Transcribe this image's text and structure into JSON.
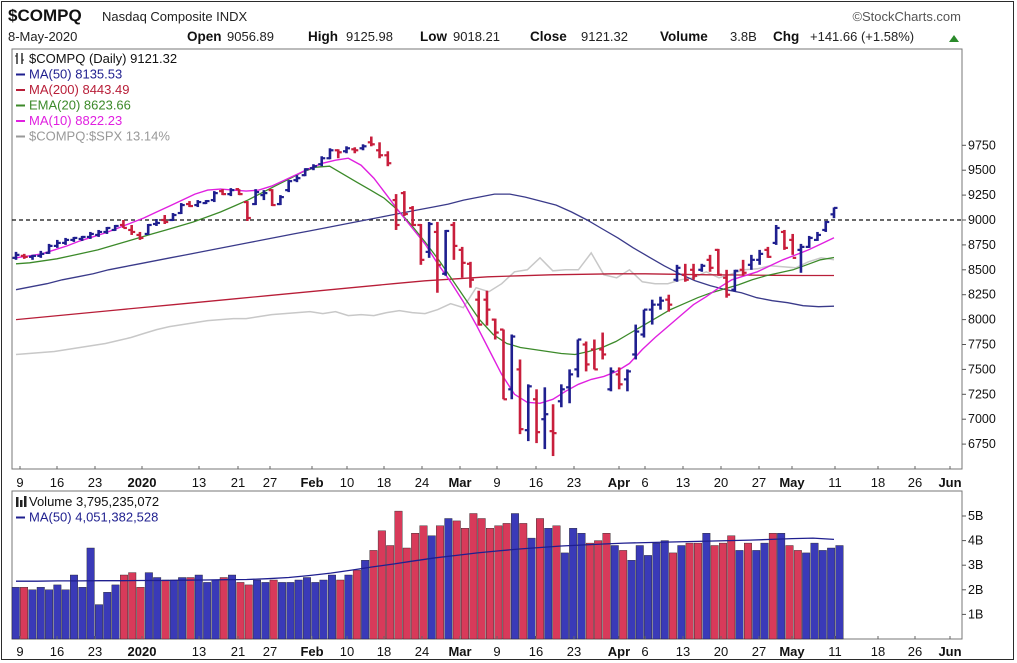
{
  "header": {
    "symbol": "$COMPQ",
    "name": "Nasdaq Composite INDX",
    "brand": "©StockCharts.com",
    "date": "8-May-2020",
    "open_label": "Open",
    "open": "9056.89",
    "high_label": "High",
    "high": "9125.98",
    "low_label": "Low",
    "low": "9018.21",
    "close_label": "Close",
    "close": "9121.32",
    "volume_label": "Volume",
    "volume": "3.8B",
    "chg_label": "Chg",
    "chg": "+141.66 (+1.58%)"
  },
  "colors": {
    "up": "#1f1f8f",
    "down": "#c81e3c",
    "ma50": "#3a3a8a",
    "ma200": "#b81e38",
    "ema20": "#3c8a2a",
    "ma10": "#e020e0",
    "relative": "#c8c8c8",
    "vol_up": "#3a3ab8",
    "vol_down": "#d83a5a"
  },
  "legend_price": [
    {
      "text": "$COMPQ (Daily) 9121.32",
      "color": "#111111",
      "icon": "ohlc-icon"
    },
    {
      "text": "MA(50) 8135.53",
      "color": "#1f1f8f",
      "icon": "line"
    },
    {
      "text": "MA(200) 8443.49",
      "color": "#b81e38",
      "icon": "line"
    },
    {
      "text": "EMA(20) 8623.66",
      "color": "#3c8a2a",
      "icon": "line"
    },
    {
      "text": "MA(10) 8822.23",
      "color": "#e020e0",
      "icon": "line"
    },
    {
      "text": "$COMPQ:$SPX 13.14%",
      "color": "#999999",
      "icon": "line"
    }
  ],
  "legend_volume": [
    {
      "text": "Volume 3,795,235,072",
      "color": "#111111",
      "icon": "bar-icon"
    },
    {
      "text": "MA(50) 4,051,382,528",
      "color": "#1f1f8f",
      "icon": "line"
    }
  ],
  "chart_data": {
    "type": "ohlc",
    "y_axis_price": {
      "ticks": [
        6750,
        7000,
        7250,
        7500,
        7750,
        8000,
        8250,
        8500,
        8750,
        9000,
        9250,
        9500,
        9750
      ],
      "reference_line": 9000
    },
    "y_axis_volume": {
      "ticks": [
        "1B",
        "2B",
        "3B",
        "4B",
        "5B"
      ],
      "tick_values": [
        1,
        2,
        3,
        4,
        5
      ],
      "unit": "billions"
    },
    "x_axis": {
      "labels": [
        "9",
        "16",
        "23",
        "2020",
        "13",
        "21",
        "27",
        "Feb",
        "10",
        "18",
        "24",
        "Mar",
        "9",
        "16",
        "23",
        "Apr",
        "6",
        "13",
        "20",
        "27",
        "May",
        "11",
        "18",
        "26",
        "Jun"
      ],
      "bold": [
        false,
        false,
        false,
        true,
        false,
        false,
        false,
        true,
        false,
        false,
        false,
        true,
        false,
        false,
        false,
        true,
        false,
        false,
        false,
        false,
        true,
        false,
        false,
        false,
        true
      ]
    },
    "bars": [
      {
        "o": 8620,
        "h": 8680,
        "l": 8600,
        "c": 8650
      },
      {
        "o": 8640,
        "h": 8660,
        "l": 8610,
        "c": 8630
      },
      {
        "o": 8630,
        "h": 8650,
        "l": 8600,
        "c": 8640
      },
      {
        "o": 8640,
        "h": 8690,
        "l": 8620,
        "c": 8660
      },
      {
        "o": 8670,
        "h": 8760,
        "l": 8660,
        "c": 8740
      },
      {
        "o": 8740,
        "h": 8800,
        "l": 8720,
        "c": 8770
      },
      {
        "o": 8770,
        "h": 8820,
        "l": 8750,
        "c": 8800
      },
      {
        "o": 8800,
        "h": 8830,
        "l": 8780,
        "c": 8820
      },
      {
        "o": 8810,
        "h": 8840,
        "l": 8790,
        "c": 8830
      },
      {
        "o": 8830,
        "h": 8880,
        "l": 8810,
        "c": 8860
      },
      {
        "o": 8850,
        "h": 8900,
        "l": 8830,
        "c": 8880
      },
      {
        "o": 8880,
        "h": 8930,
        "l": 8860,
        "c": 8920
      },
      {
        "o": 8900,
        "h": 8950,
        "l": 8890,
        "c": 8940
      },
      {
        "o": 8950,
        "h": 9000,
        "l": 8920,
        "c": 8920
      },
      {
        "o": 8900,
        "h": 8950,
        "l": 8850,
        "c": 8880
      },
      {
        "o": 8850,
        "h": 8880,
        "l": 8800,
        "c": 8820
      },
      {
        "o": 8860,
        "h": 8960,
        "l": 8850,
        "c": 8950
      },
      {
        "o": 8960,
        "h": 9010,
        "l": 8940,
        "c": 8970
      },
      {
        "o": 9000,
        "h": 9050,
        "l": 8960,
        "c": 8980
      },
      {
        "o": 9000,
        "h": 9070,
        "l": 8990,
        "c": 9050
      },
      {
        "o": 9070,
        "h": 9170,
        "l": 9060,
        "c": 9150
      },
      {
        "o": 9160,
        "h": 9190,
        "l": 9130,
        "c": 9140
      },
      {
        "o": 9150,
        "h": 9200,
        "l": 9130,
        "c": 9180
      },
      {
        "o": 9170,
        "h": 9200,
        "l": 9160,
        "c": 9190
      },
      {
        "o": 9200,
        "h": 9290,
        "l": 9180,
        "c": 9270
      },
      {
        "o": 9290,
        "h": 9310,
        "l": 9250,
        "c": 9260
      },
      {
        "o": 9260,
        "h": 9320,
        "l": 9240,
        "c": 9300
      },
      {
        "o": 9310,
        "h": 9310,
        "l": 9250,
        "c": 9260
      },
      {
        "o": 9180,
        "h": 9190,
        "l": 8990,
        "c": 9020
      },
      {
        "o": 9160,
        "h": 9310,
        "l": 9150,
        "c": 9280
      },
      {
        "o": 9250,
        "h": 9300,
        "l": 9200,
        "c": 9270
      },
      {
        "o": 9300,
        "h": 9310,
        "l": 9140,
        "c": 9150
      },
      {
        "o": 9160,
        "h": 9250,
        "l": 9150,
        "c": 9230
      },
      {
        "o": 9300,
        "h": 9400,
        "l": 9280,
        "c": 9390
      },
      {
        "o": 9400,
        "h": 9450,
        "l": 9380,
        "c": 9420
      },
      {
        "o": 9450,
        "h": 9520,
        "l": 9440,
        "c": 9510
      },
      {
        "o": 9520,
        "h": 9560,
        "l": 9500,
        "c": 9540
      },
      {
        "o": 9560,
        "h": 9640,
        "l": 9540,
        "c": 9620
      },
      {
        "o": 9620,
        "h": 9720,
        "l": 9610,
        "c": 9700
      },
      {
        "o": 9700,
        "h": 9710,
        "l": 9620,
        "c": 9680
      },
      {
        "o": 9690,
        "h": 9740,
        "l": 9670,
        "c": 9720
      },
      {
        "o": 9710,
        "h": 9730,
        "l": 9670,
        "c": 9700
      },
      {
        "o": 9720,
        "h": 9760,
        "l": 9700,
        "c": 9740
      },
      {
        "o": 9780,
        "h": 9838,
        "l": 9740,
        "c": 9760
      },
      {
        "o": 9700,
        "h": 9780,
        "l": 9620,
        "c": 9650
      },
      {
        "o": 9650,
        "h": 9690,
        "l": 9540,
        "c": 9570
      },
      {
        "o": 9200,
        "h": 9260,
        "l": 8900,
        "c": 8950
      },
      {
        "o": 9270,
        "h": 9290,
        "l": 9040,
        "c": 9060
      },
      {
        "o": 9120,
        "h": 9140,
        "l": 8940,
        "c": 8950
      },
      {
        "o": 8950,
        "h": 8960,
        "l": 8550,
        "c": 8600
      },
      {
        "o": 8680,
        "h": 8980,
        "l": 8620,
        "c": 8960
      },
      {
        "o": 8880,
        "h": 8980,
        "l": 8270,
        "c": 8550
      },
      {
        "o": 8460,
        "h": 8900,
        "l": 8440,
        "c": 8890
      },
      {
        "o": 8950,
        "h": 8980,
        "l": 8600,
        "c": 8740
      },
      {
        "o": 8700,
        "h": 8730,
        "l": 8420,
        "c": 8570
      },
      {
        "o": 8560,
        "h": 8580,
        "l": 8320,
        "c": 8400
      },
      {
        "o": 8200,
        "h": 8290,
        "l": 7940,
        "c": 7950
      },
      {
        "o": 8200,
        "h": 8290,
        "l": 7940,
        "c": 8100
      },
      {
        "o": 8000,
        "h": 8010,
        "l": 7800,
        "c": 7870
      },
      {
        "o": 7900,
        "h": 7900,
        "l": 7200,
        "c": 7200
      },
      {
        "o": 7300,
        "h": 7850,
        "l": 7200,
        "c": 7830
      },
      {
        "o": 7500,
        "h": 7600,
        "l": 6850,
        "c": 6900
      },
      {
        "o": 6890,
        "h": 7350,
        "l": 6780,
        "c": 7330
      },
      {
        "o": 7200,
        "h": 7300,
        "l": 6760,
        "c": 6870
      },
      {
        "o": 7000,
        "h": 7320,
        "l": 6700,
        "c": 7050
      },
      {
        "o": 6880,
        "h": 7150,
        "l": 6630,
        "c": 6860
      },
      {
        "o": 7180,
        "h": 7350,
        "l": 7120,
        "c": 7300
      },
      {
        "o": 7320,
        "h": 7500,
        "l": 7160,
        "c": 7450
      },
      {
        "o": 7500,
        "h": 7800,
        "l": 7420,
        "c": 7800
      },
      {
        "o": 7750,
        "h": 7780,
        "l": 7480,
        "c": 7550
      },
      {
        "o": 7700,
        "h": 7800,
        "l": 7500,
        "c": 7500
      },
      {
        "o": 7700,
        "h": 7870,
        "l": 7600,
        "c": 7650
      },
      {
        "o": 7300,
        "h": 7520,
        "l": 7280,
        "c": 7480
      },
      {
        "o": 7450,
        "h": 7520,
        "l": 7300,
        "c": 7350
      },
      {
        "o": 7400,
        "h": 7500,
        "l": 7280,
        "c": 7480
      },
      {
        "o": 7650,
        "h": 7950,
        "l": 7600,
        "c": 7880
      },
      {
        "o": 7850,
        "h": 8100,
        "l": 7820,
        "c": 8100
      },
      {
        "o": 8100,
        "h": 8200,
        "l": 7950,
        "c": 8150
      },
      {
        "o": 8150,
        "h": 8230,
        "l": 8100,
        "c": 8190
      },
      {
        "o": 8200,
        "h": 8250,
        "l": 8080,
        "c": 8150
      },
      {
        "o": 8400,
        "h": 8550,
        "l": 8380,
        "c": 8520
      },
      {
        "o": 8450,
        "h": 8560,
        "l": 8380,
        "c": 8400
      },
      {
        "o": 8500,
        "h": 8560,
        "l": 8400,
        "c": 8440
      },
      {
        "o": 8500,
        "h": 8560,
        "l": 8480,
        "c": 8540
      },
      {
        "o": 8600,
        "h": 8650,
        "l": 8480,
        "c": 8520
      },
      {
        "o": 8700,
        "h": 8710,
        "l": 8440,
        "c": 8450
      },
      {
        "o": 8420,
        "h": 8500,
        "l": 8220,
        "c": 8250
      },
      {
        "o": 8300,
        "h": 8500,
        "l": 8280,
        "c": 8490
      },
      {
        "o": 8500,
        "h": 8600,
        "l": 8440,
        "c": 8470
      },
      {
        "o": 8550,
        "h": 8650,
        "l": 8500,
        "c": 8600
      },
      {
        "o": 8600,
        "h": 8700,
        "l": 8550,
        "c": 8660
      },
      {
        "o": 8700,
        "h": 8730,
        "l": 8620,
        "c": 8630
      },
      {
        "o": 8770,
        "h": 8950,
        "l": 8750,
        "c": 8920
      },
      {
        "o": 8880,
        "h": 8900,
        "l": 8700,
        "c": 8720
      },
      {
        "o": 8800,
        "h": 8860,
        "l": 8650,
        "c": 8620
      },
      {
        "o": 8700,
        "h": 8760,
        "l": 8470,
        "c": 8730
      },
      {
        "o": 8730,
        "h": 8840,
        "l": 8720,
        "c": 8820
      },
      {
        "o": 8800,
        "h": 8880,
        "l": 8790,
        "c": 8850
      },
      {
        "o": 8900,
        "h": 8990,
        "l": 8880,
        "c": 8980
      },
      {
        "o": 9056.89,
        "h": 9125.98,
        "l": 9018.21,
        "c": 9121.32
      }
    ],
    "ma50": [
      8300,
      8330,
      8360,
      8400,
      8430,
      8460,
      8500,
      8530,
      8560,
      8590,
      8620,
      8650,
      8680,
      8710,
      8740,
      8770,
      8800,
      8830,
      8860,
      8890,
      8920,
      8950,
      8980,
      9010,
      9040,
      9070,
      9100,
      9130,
      9160,
      9200,
      9230,
      9260,
      9260,
      9230,
      9190,
      9150,
      9080,
      9000,
      8910,
      8820,
      8720,
      8630,
      8540,
      8460,
      8390,
      8340,
      8300,
      8270,
      8220,
      8190,
      8170,
      8140,
      8130,
      8135
    ],
    "ma200": [
      8000,
      8030,
      8060,
      8090,
      8120,
      8150,
      8180,
      8210,
      8240,
      8270,
      8300,
      8330,
      8360,
      8390,
      8410,
      8430,
      8440,
      8450,
      8455,
      8460,
      8460,
      8455,
      8450,
      8448,
      8445,
      8443,
      8443
    ],
    "ema20": [
      8560,
      8570,
      8590,
      8610,
      8640,
      8670,
      8700,
      8740,
      8780,
      8820,
      8860,
      8900,
      8940,
      8980,
      9030,
      9080,
      9140,
      9200,
      9270,
      9340,
      9410,
      9480,
      9530,
      9540,
      9460,
      9380,
      9300,
      9220,
      9100,
      8950,
      8780,
      8600,
      8400,
      8200,
      8000,
      7850,
      7760,
      7720,
      7700,
      7680,
      7660,
      7650,
      7680,
      7720,
      7780,
      7860,
      7940,
      8020,
      8100,
      8160,
      8220,
      8270,
      8310,
      8350,
      8400,
      8440,
      8470,
      8500,
      8550,
      8600,
      8623.66
    ],
    "ma10": [
      8620,
      8640,
      8660,
      8700,
      8740,
      8790,
      8830,
      8870,
      8920,
      8970,
      9020,
      9080,
      9140,
      9200,
      9260,
      9300,
      9310,
      9300,
      9290,
      9300,
      9340,
      9400,
      9460,
      9520,
      9570,
      9600,
      9620,
      9550,
      9420,
      9250,
      9080,
      8920,
      8760,
      8560,
      8380,
      8180,
      7950,
      7700,
      7450,
      7250,
      7170,
      7160,
      7200,
      7280,
      7350,
      7400,
      7430,
      7480,
      7560,
      7700,
      7820,
      7930,
      8040,
      8150,
      8230,
      8320,
      8400,
      8440,
      8480,
      8540,
      8600,
      8650,
      8700,
      8760,
      8822.23
    ],
    "relative_strength": [
      7650,
      7660,
      7670,
      7680,
      7700,
      7720,
      7740,
      7760,
      7790,
      7820,
      7860,
      7900,
      7930,
      7950,
      7970,
      7990,
      8000,
      8010,
      8010,
      8030,
      8050,
      8060,
      8070,
      8080,
      8060,
      8080,
      8040,
      8050,
      8040,
      8070,
      8090,
      8070,
      8060,
      8100,
      8160,
      8120,
      8320,
      8280,
      8360,
      8480,
      8500,
      8620,
      8490,
      8500,
      8500,
      8670,
      8450,
      8420,
      8500,
      8380,
      8360,
      8360,
      8400,
      8420,
      8480,
      8420,
      8460,
      8500,
      8510,
      8540,
      8530,
      8520,
      8580,
      8620,
      8600
    ],
    "volume": [
      2.1,
      2.1,
      2.0,
      2.1,
      2.0,
      2.2,
      2.0,
      2.6,
      2.1,
      3.7,
      1.4,
      1.9,
      2.2,
      2.6,
      2.7,
      2.1,
      2.7,
      2.5,
      2.4,
      2.4,
      2.5,
      2.5,
      2.6,
      2.3,
      2.4,
      2.5,
      2.6,
      2.3,
      2.2,
      2.4,
      2.3,
      2.4,
      2.3,
      2.3,
      2.4,
      2.5,
      2.3,
      2.4,
      2.6,
      2.4,
      2.6,
      2.8,
      3.2,
      3.6,
      4.4,
      3.8,
      5.2,
      3.7,
      4.3,
      4.6,
      4.2,
      4.6,
      4.9,
      4.8,
      4.5,
      5.1,
      4.9,
      4.5,
      4.6,
      4.7,
      5.1,
      4.7,
      4.1,
      4.9,
      4.5,
      4.6,
      3.5,
      4.5,
      4.3,
      3.9,
      4.0,
      4.3,
      3.8,
      3.6,
      3.2,
      3.8,
      3.4,
      3.9,
      4.0,
      3.5,
      3.8,
      3.9,
      3.9,
      4.3,
      3.8,
      3.9,
      4.2,
      3.6,
      3.9,
      3.6,
      3.9,
      4.3,
      4.3,
      3.8,
      3.6,
      3.5,
      3.9,
      3.6,
      3.7,
      3.8
    ],
    "volume_ma50": [
      2.35,
      2.35,
      2.36,
      2.36,
      2.37,
      2.37,
      2.38,
      2.38,
      2.39,
      2.4,
      2.41,
      2.42,
      2.45,
      2.5,
      2.58,
      2.68,
      2.8,
      2.93,
      3.05,
      3.18,
      3.3,
      3.4,
      3.5,
      3.58,
      3.66,
      3.72,
      3.78,
      3.82,
      3.86,
      3.9,
      3.92,
      3.94,
      3.96,
      3.98,
      4.0,
      4.02,
      4.05,
      4.08,
      4.1,
      4.05
    ]
  }
}
